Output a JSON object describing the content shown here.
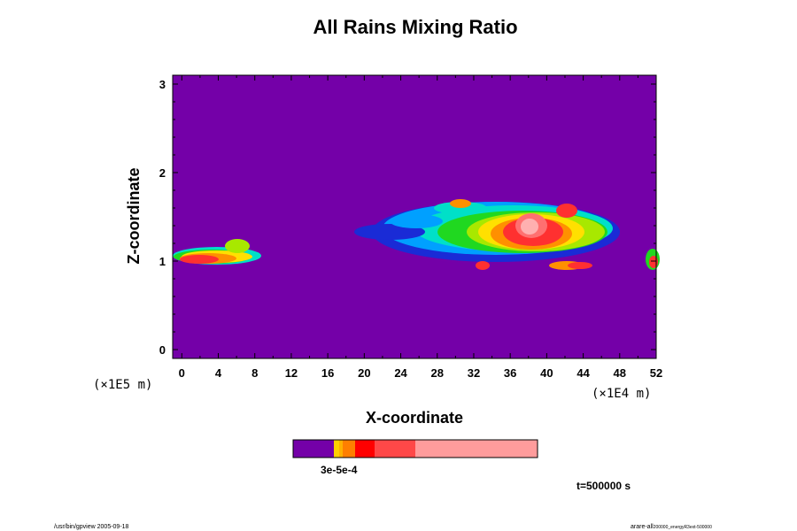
{
  "chart_data": {
    "type": "heatmap",
    "title": "All Rains Mixing Ratio",
    "xlabel": "X-coordinate",
    "ylabel": "Z-coordinate",
    "x_unit": "(×1E4 m)",
    "y_unit": "(×1E5 m)",
    "x_ticks": [
      "0",
      "4",
      "8",
      "12",
      "16",
      "20",
      "24",
      "28",
      "32",
      "36",
      "40",
      "44",
      "48",
      "52"
    ],
    "y_ticks": [
      "0",
      "1",
      "2",
      "3"
    ],
    "xlim": [
      -1,
      52
    ],
    "ylim": [
      -0.1,
      3.1
    ],
    "background_color": "#7400a8",
    "colorbar": {
      "colors": [
        "#7400a8",
        "#ffd000",
        "#ff7f00",
        "#ff0000",
        "#ff4848",
        "#ff9c9c"
      ],
      "label_text": "3e-5e-4"
    },
    "time_label": "t=500000 s",
    "footer_left": "/usr/bin/gpview 2005-09-18",
    "footer_right": "arare-all",
    "footer_right_small": "200000_energyR3ext-500000"
  }
}
